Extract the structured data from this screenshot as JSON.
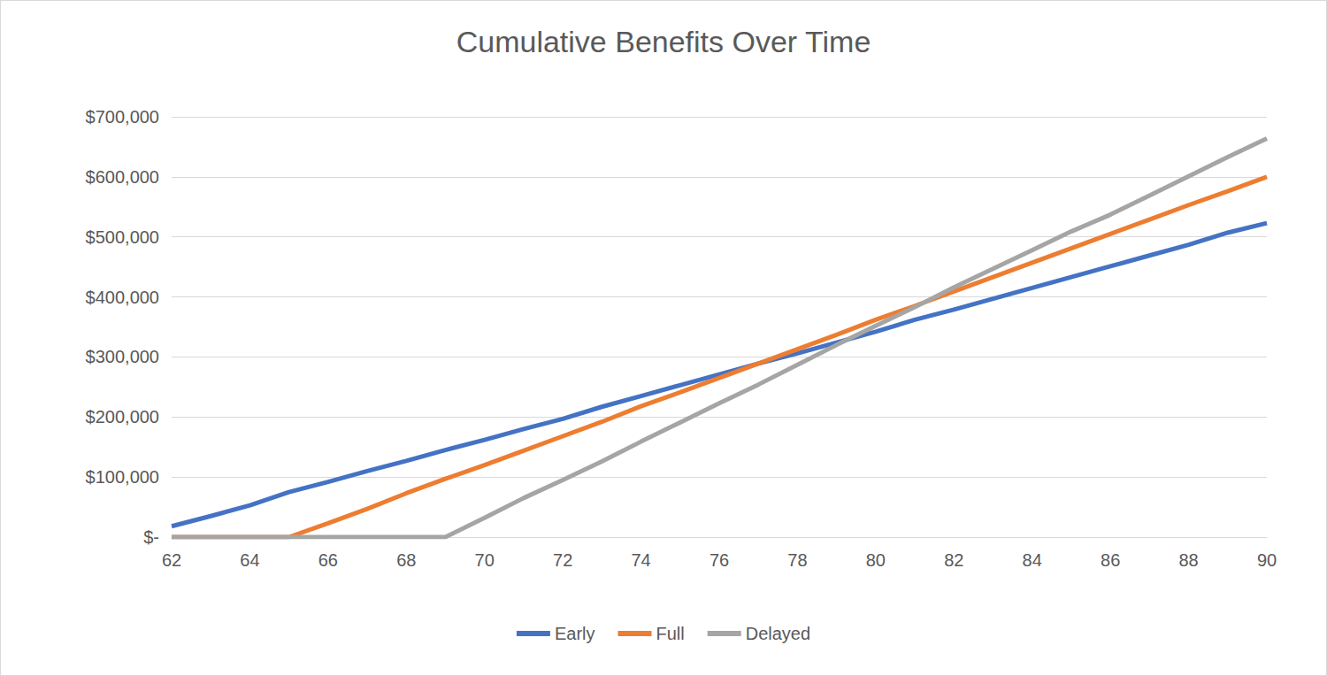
{
  "chart_data": {
    "type": "line",
    "title": "Cumulative Benefits Over Time",
    "x": [
      62,
      63,
      64,
      65,
      66,
      67,
      68,
      69,
      70,
      71,
      72,
      73,
      74,
      75,
      76,
      77,
      78,
      79,
      80,
      81,
      82,
      83,
      84,
      85,
      86,
      87,
      88,
      89,
      90
    ],
    "series": [
      {
        "name": "Early",
        "color": "#4472c4",
        "values": [
          18000,
          35000,
          53000,
          75000,
          92000,
          110000,
          127000,
          145000,
          162000,
          180000,
          197000,
          217000,
          235000,
          253000,
          271000,
          289000,
          306000,
          324000,
          342000,
          362000,
          379000,
          397000,
          415000,
          433000,
          451000,
          469000,
          487000,
          507000,
          523000
        ]
      },
      {
        "name": "Full",
        "color": "#ed7d31",
        "values": [
          0,
          0,
          0,
          0,
          23000,
          47000,
          73000,
          97000,
          120000,
          144000,
          168000,
          192000,
          218000,
          241000,
          265000,
          289000,
          313000,
          337000,
          362000,
          385000,
          409000,
          433000,
          457000,
          481000,
          505000,
          529000,
          553000,
          576000,
          600000
        ]
      },
      {
        "name": "Delayed",
        "color": "#a5a5a5",
        "values": [
          0,
          0,
          0,
          0,
          0,
          0,
          0,
          0,
          32000,
          65000,
          95000,
          126000,
          159000,
          191000,
          223000,
          254000,
          287000,
          320000,
          352000,
          383000,
          416000,
          447000,
          478000,
          509000,
          537000,
          569000,
          601000,
          633000,
          664000
        ]
      }
    ],
    "xlim": [
      62,
      90
    ],
    "xticks": [
      62,
      64,
      66,
      68,
      70,
      72,
      74,
      76,
      78,
      80,
      82,
      84,
      86,
      88,
      90
    ],
    "ylim": [
      0,
      700000
    ],
    "yticks": [
      {
        "value": 0,
        "label": "$-"
      },
      {
        "value": 100000,
        "label": "$100,000"
      },
      {
        "value": 200000,
        "label": "$200,000"
      },
      {
        "value": 300000,
        "label": "$300,000"
      },
      {
        "value": 400000,
        "label": "$400,000"
      },
      {
        "value": 500000,
        "label": "$500,000"
      },
      {
        "value": 600000,
        "label": "$600,000"
      },
      {
        "value": 700000,
        "label": "$700,000"
      }
    ],
    "grid": true,
    "legend": "bottom"
  }
}
